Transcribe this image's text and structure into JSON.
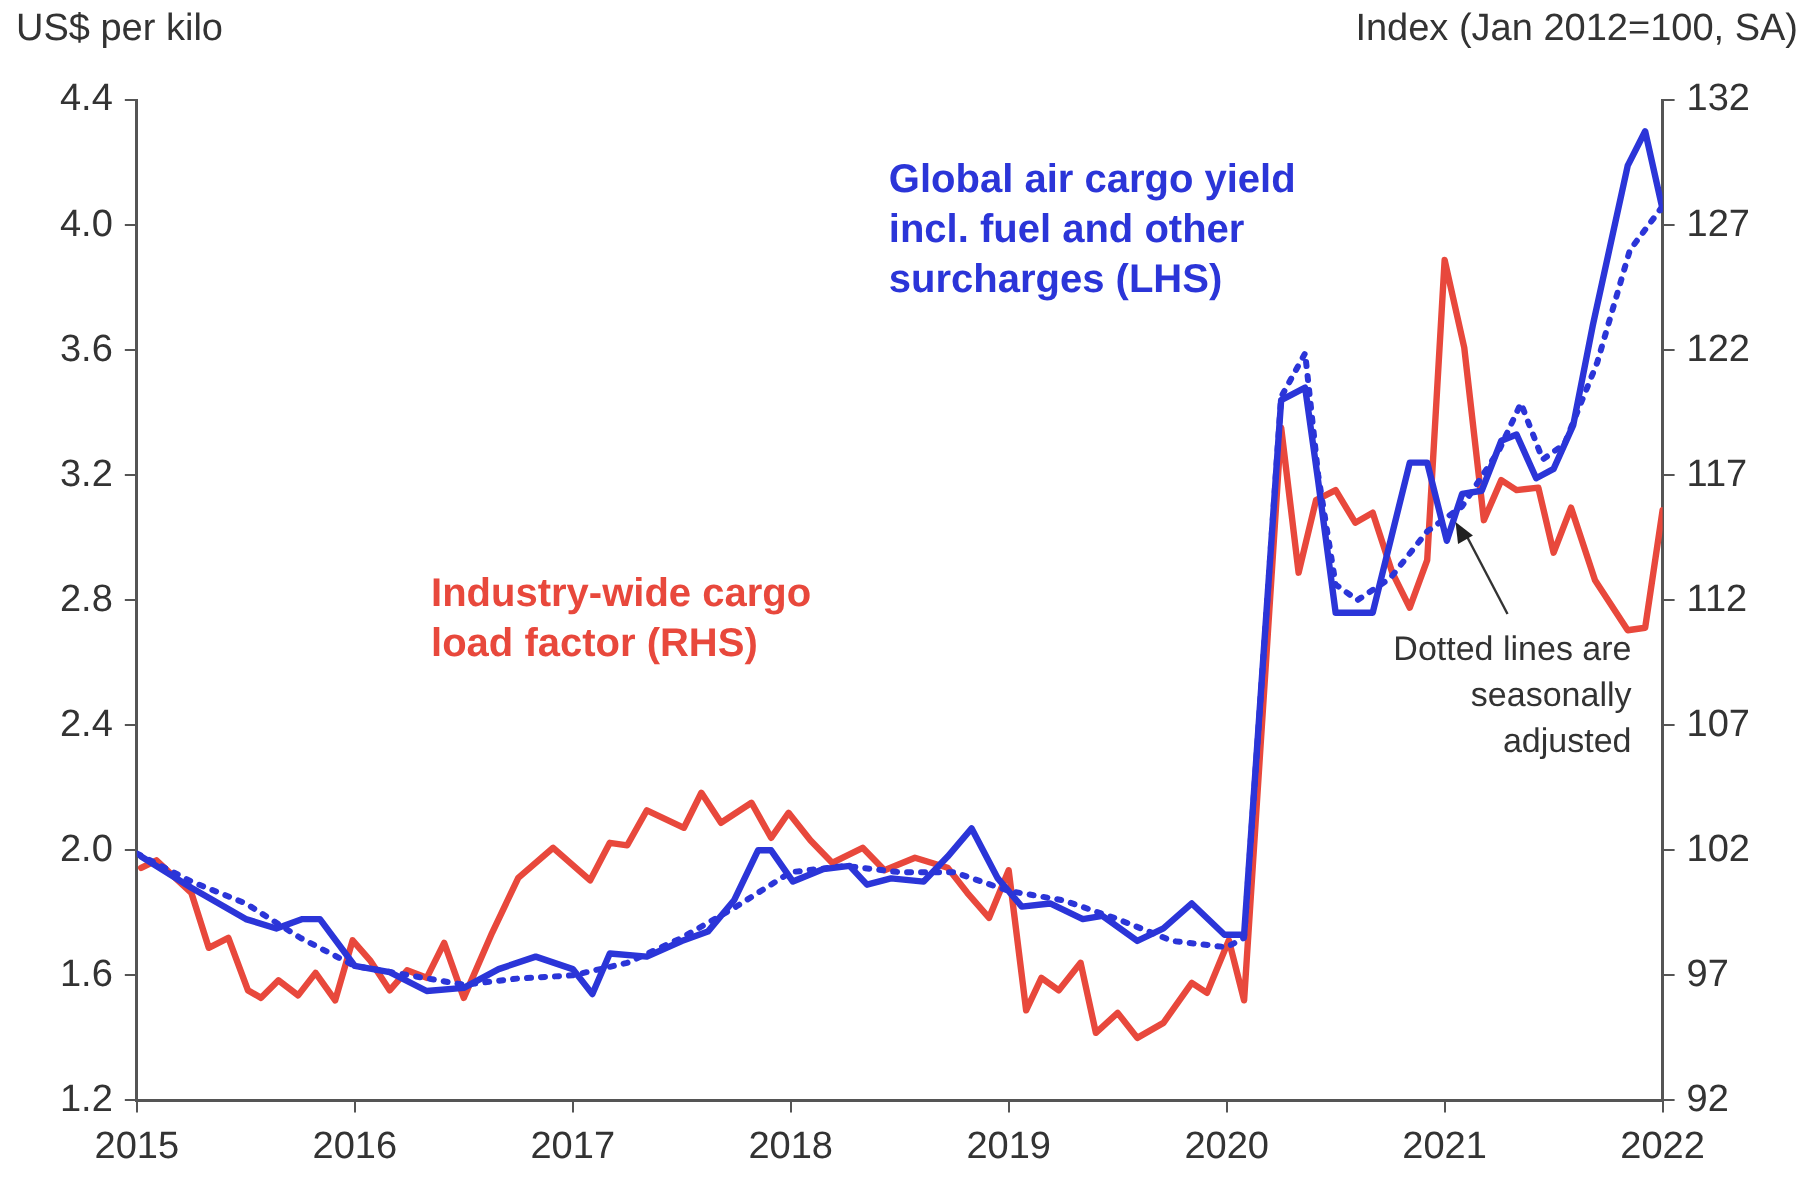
{
  "chart_data": {
    "type": "line",
    "ylabel": "US$ per kilo",
    "y2label": "Index (Jan 2012=100, SA)",
    "xlim": [
      2015,
      2022
    ],
    "xticks": [
      2015,
      2016,
      2017,
      2018,
      2019,
      2020,
      2021,
      2022
    ],
    "ylim": [
      1.2,
      4.4
    ],
    "yticks": [
      1.2,
      1.6,
      {
        "value": 2,
        "label": "2.0"
      },
      2.4,
      2.8,
      3.2,
      3.6,
      {
        "value": 4,
        "label": "4.0"
      },
      4.4
    ],
    "y2lim": [
      92,
      132
    ],
    "y2ticks": [
      92,
      97,
      102,
      107,
      112,
      117,
      122,
      127,
      132
    ],
    "grid": false,
    "legend": false,
    "marker": "none",
    "series": [
      {
        "name": "Global air cargo yield incl. fuel and other surcharges (LHS)",
        "color": "#2b35d8",
        "line_style": "solid",
        "x": [
          2015.02,
          2015.25,
          2015.5,
          2015.64,
          2015.76,
          2015.84,
          2016.0,
          2016.16,
          2016.33,
          2016.5,
          2016.66,
          2016.83,
          2017.0,
          2017.09,
          2017.17,
          2017.34,
          2017.5,
          2017.62,
          2017.74,
          2017.85,
          2017.91,
          2018.01,
          2018.15,
          2018.27,
          2018.35,
          2018.46,
          2018.61,
          2018.72,
          2018.83,
          2018.95,
          2019.06,
          2019.19,
          2019.34,
          2019.43,
          2019.59,
          2019.71,
          2019.84,
          2019.99,
          2020.08,
          2020.25,
          2020.36,
          2020.42,
          2020.5,
          2020.67,
          2020.84,
          2020.92,
          2021.01,
          2021.08,
          2021.17,
          2021.26,
          2021.33,
          2021.42,
          2021.5,
          2021.59,
          2021.68,
          2021.84,
          2021.92,
          2022.0
        ],
        "values": [
          1.98,
          1.88,
          1.78,
          1.75,
          1.78,
          1.78,
          1.63,
          1.61,
          1.55,
          1.56,
          1.62,
          1.66,
          1.62,
          1.54,
          1.67,
          1.66,
          1.71,
          1.74,
          1.84,
          2.0,
          2.0,
          1.9,
          1.94,
          1.95,
          1.89,
          1.91,
          1.9,
          1.98,
          2.07,
          1.91,
          1.82,
          1.83,
          1.78,
          1.79,
          1.71,
          1.75,
          1.83,
          1.73,
          1.73,
          3.44,
          3.48,
          3.18,
          2.76,
          2.76,
          3.24,
          3.24,
          2.99,
          3.14,
          3.15,
          3.31,
          3.33,
          3.19,
          3.22,
          3.36,
          3.68,
          4.19,
          4.3,
          4.05
        ]
      },
      {
        "color": "#2b35d8",
        "line_style": "dotted",
        "x": [
          2015.0,
          2015.25,
          2015.5,
          2015.75,
          2016.0,
          2016.25,
          2016.5,
          2016.75,
          2017.0,
          2017.25,
          2017.5,
          2017.75,
          2018.0,
          2018.25,
          2018.5,
          2018.75,
          2019.0,
          2019.25,
          2019.5,
          2019.75,
          2020.0,
          2020.08,
          2020.25,
          2020.36,
          2020.42,
          2020.5,
          2020.6,
          2020.75,
          2020.92,
          2021.08,
          2021.25,
          2021.35,
          2021.45,
          2021.55,
          2021.7,
          2021.85,
          2022.0
        ],
        "values": [
          1.99,
          1.9,
          1.83,
          1.72,
          1.63,
          1.6,
          1.57,
          1.59,
          1.6,
          1.64,
          1.72,
          1.82,
          1.93,
          1.95,
          1.93,
          1.93,
          1.87,
          1.84,
          1.78,
          1.71,
          1.69,
          1.72,
          3.45,
          3.59,
          3.2,
          2.85,
          2.8,
          2.87,
          3.02,
          3.1,
          3.28,
          3.43,
          3.25,
          3.3,
          3.56,
          3.92,
          4.06
        ]
      },
      {
        "name": "Industry-wide cargo load factor (RHS)",
        "color": "#e8483c",
        "line_style": "solid",
        "axis": "y2",
        "x": [
          2015.02,
          2015.09,
          2015.25,
          2015.33,
          2015.42,
          2015.51,
          2015.57,
          2015.65,
          2015.74,
          2015.82,
          2015.91,
          2015.99,
          2016.07,
          2016.16,
          2016.24,
          2016.33,
          2016.41,
          2016.5,
          2016.63,
          2016.75,
          2016.91,
          2017.08,
          2017.17,
          2017.25,
          2017.34,
          2017.51,
          2017.59,
          2017.68,
          2017.82,
          2017.91,
          2017.99,
          2018.09,
          2018.19,
          2018.33,
          2018.43,
          2018.57,
          2018.72,
          2018.81,
          2018.91,
          2019.0,
          2019.08,
          2019.15,
          2019.23,
          2019.33,
          2019.4,
          2019.5,
          2019.59,
          2019.71,
          2019.84,
          2019.91,
          2020.01,
          2020.08,
          2020.25,
          2020.33,
          2020.41,
          2020.5,
          2020.59,
          2020.67,
          2020.76,
          2020.84,
          2020.92,
          2021.0,
          2021.09,
          2021.18,
          2021.26,
          2021.33,
          2021.43,
          2021.5,
          2021.58,
          2021.69,
          2021.84,
          2021.92,
          2022.0
        ],
        "values": [
          101.3,
          101.6,
          100.3,
          98.1,
          98.5,
          96.4,
          96.1,
          96.8,
          96.2,
          97.1,
          96.0,
          98.4,
          97.6,
          96.4,
          97.2,
          96.9,
          98.3,
          96.1,
          98.7,
          100.9,
          102.1,
          100.8,
          102.3,
          102.2,
          103.6,
          102.9,
          104.3,
          103.1,
          103.9,
          102.5,
          103.5,
          102.4,
          101.5,
          102.1,
          101.2,
          101.7,
          101.3,
          100.3,
          99.3,
          101.2,
          95.6,
          96.9,
          96.4,
          97.5,
          94.7,
          95.5,
          94.5,
          95.1,
          96.7,
          96.3,
          98.4,
          96.0,
          118.9,
          113.1,
          116.0,
          116.4,
          115.1,
          115.5,
          113.1,
          111.7,
          113.6,
          125.6,
          122.1,
          115.2,
          116.8,
          116.4,
          116.5,
          113.9,
          115.7,
          112.8,
          110.8,
          110.9,
          115.6
        ]
      }
    ],
    "annotations": [
      {
        "text": "Dotted lines are seasonally adjusted",
        "x": 2021.05,
        "y": 3.05
      }
    ]
  }
}
